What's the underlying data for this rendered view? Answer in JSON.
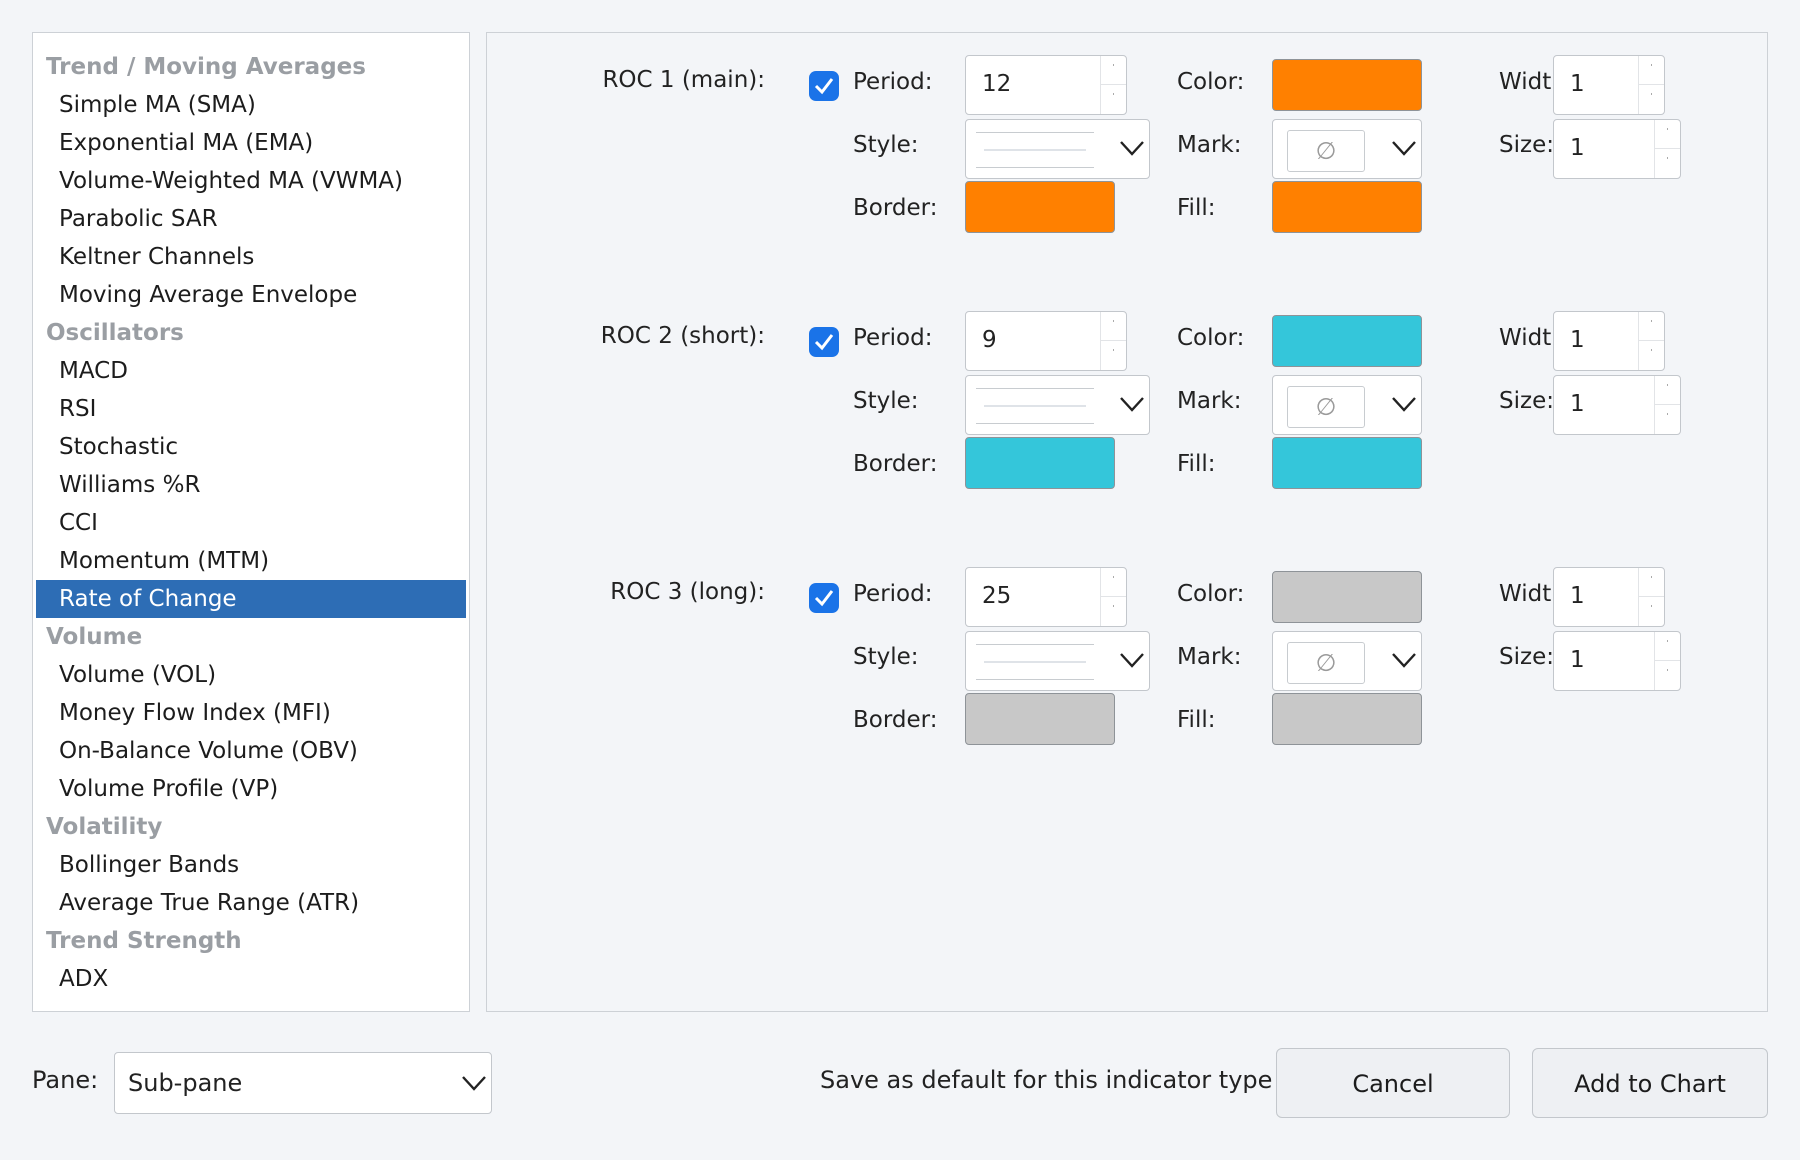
{
  "indicator_list": [
    {
      "type": "group",
      "label": "Trend / Moving Averages"
    },
    {
      "type": "item",
      "label": "Simple MA (SMA)"
    },
    {
      "type": "item",
      "label": "Exponential MA (EMA)"
    },
    {
      "type": "item",
      "label": "Volume-Weighted MA (VWMA)"
    },
    {
      "type": "item",
      "label": "Parabolic SAR"
    },
    {
      "type": "item",
      "label": "Keltner Channels"
    },
    {
      "type": "item",
      "label": "Moving Average Envelope"
    },
    {
      "type": "group",
      "label": "Oscillators"
    },
    {
      "type": "item",
      "label": "MACD"
    },
    {
      "type": "item",
      "label": "RSI"
    },
    {
      "type": "item",
      "label": "Stochastic"
    },
    {
      "type": "item",
      "label": "Williams %R"
    },
    {
      "type": "item",
      "label": "CCI"
    },
    {
      "type": "item",
      "label": "Momentum (MTM)"
    },
    {
      "type": "item",
      "label": "Rate of Change",
      "selected": true
    },
    {
      "type": "group",
      "label": "Volume"
    },
    {
      "type": "item",
      "label": "Volume (VOL)"
    },
    {
      "type": "item",
      "label": "Money Flow Index (MFI)"
    },
    {
      "type": "item",
      "label": "On-Balance Volume (OBV)"
    },
    {
      "type": "item",
      "label": "Volume Profile (VP)"
    },
    {
      "type": "group",
      "label": "Volatility"
    },
    {
      "type": "item",
      "label": "Bollinger Bands"
    },
    {
      "type": "item",
      "label": "Average True Range (ATR)"
    },
    {
      "type": "group",
      "label": "Trend Strength"
    },
    {
      "type": "item",
      "label": "ADX"
    }
  ],
  "labels": {
    "period": "Period:",
    "style": "Style:",
    "border": "Border:",
    "color": "Color:",
    "mark": "Mark:",
    "fill": "Fill:",
    "width": "Width:",
    "size": "Size:"
  },
  "roc_lines": [
    {
      "title": "ROC 1 (main):",
      "enabled": true,
      "period": "12",
      "color": "#ff8000",
      "border": "#ff8000",
      "fill": "#ff8000",
      "width": "1",
      "size": "1",
      "mark_icon": "empty-set-icon"
    },
    {
      "title": "ROC 2 (short):",
      "enabled": true,
      "period": "9",
      "color": "#34c6da",
      "border": "#34c6da",
      "fill": "#34c6da",
      "width": "1",
      "size": "1",
      "mark_icon": "empty-set-icon"
    },
    {
      "title": "ROC 3 (long):",
      "enabled": true,
      "period": "25",
      "color": "#c8c8c8",
      "border": "#c8c8c8",
      "fill": "#c8c8c8",
      "width": "1",
      "size": "1",
      "mark_icon": "empty-set-icon"
    }
  ],
  "footer": {
    "pane_label": "Pane:",
    "pane_value": "Sub-pane",
    "save_default_label": "Save as default for this indicator type",
    "cancel_label": "Cancel",
    "add_label": "Add to Chart"
  }
}
